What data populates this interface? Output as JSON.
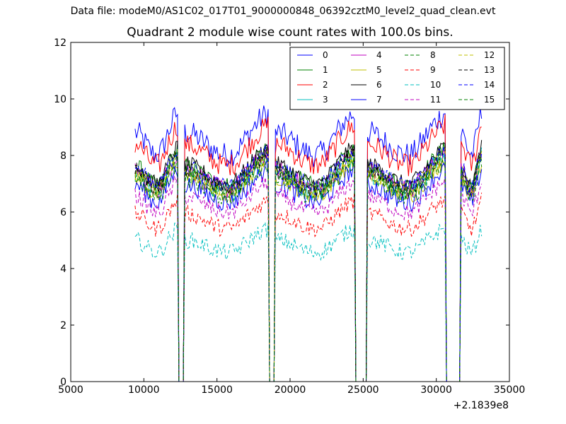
{
  "suptitle": "Data file: modeM0/AS1C02_017T01_9000000848_06392cztM0_level2_quad_clean.evt",
  "chart_data": {
    "type": "line",
    "title": "Quadrant 2 module wise count rates with 100.0s bins.",
    "xlabel": "",
    "ylabel": "",
    "xlim": [
      5000,
      35000
    ],
    "ylim": [
      0,
      12
    ],
    "x_offset_label": "+2.1839e8",
    "x_ticks": [
      5000,
      10000,
      15000,
      20000,
      25000,
      30000,
      35000
    ],
    "x_tick_labels": [
      "5000",
      "10000",
      "15000",
      "20000",
      "25000",
      "30000",
      "35000"
    ],
    "y_ticks": [
      0,
      2,
      4,
      6,
      8,
      10,
      12
    ],
    "y_tick_labels": [
      "0",
      "2",
      "4",
      "6",
      "8",
      "10",
      "12"
    ],
    "x_range": [
      9400,
      33100
    ],
    "x_step": 100,
    "gaps": [
      [
        12300,
        12800
      ],
      [
        18500,
        19000
      ],
      [
        24400,
        25300
      ],
      [
        30600,
        31700
      ]
    ],
    "legend_position": "top-right",
    "legend_columns": 4,
    "series": [
      {
        "name": "0",
        "color": "#0000ff",
        "style": "solid",
        "base": 8.6,
        "noise": 0.45
      },
      {
        "name": "1",
        "color": "#008000",
        "style": "solid",
        "base": 7.4,
        "noise": 0.35
      },
      {
        "name": "2",
        "color": "#ff0000",
        "style": "solid",
        "base": 8.2,
        "noise": 0.4
      },
      {
        "name": "3",
        "color": "#00bfbf",
        "style": "solid",
        "base": 7.2,
        "noise": 0.35
      },
      {
        "name": "4",
        "color": "#bf00bf",
        "style": "solid",
        "base": 7.3,
        "noise": 0.35
      },
      {
        "name": "5",
        "color": "#bfbf00",
        "style": "solid",
        "base": 7.1,
        "noise": 0.35
      },
      {
        "name": "6",
        "color": "#000000",
        "style": "solid",
        "base": 7.5,
        "noise": 0.3
      },
      {
        "name": "7",
        "color": "#0000ff",
        "style": "solid",
        "base": 6.8,
        "noise": 0.35
      },
      {
        "name": "8",
        "color": "#008000",
        "style": "dashed",
        "base": 7.0,
        "noise": 0.3
      },
      {
        "name": "9",
        "color": "#ff0000",
        "style": "dashed",
        "base": 5.8,
        "noise": 0.3
      },
      {
        "name": "10",
        "color": "#00bfbf",
        "style": "dashed",
        "base": 4.9,
        "noise": 0.3
      },
      {
        "name": "11",
        "color": "#bf00bf",
        "style": "dashed",
        "base": 6.4,
        "noise": 0.3
      },
      {
        "name": "12",
        "color": "#bfbf00",
        "style": "dashed",
        "base": 7.2,
        "noise": 0.3
      },
      {
        "name": "13",
        "color": "#000000",
        "style": "dashed",
        "base": 7.3,
        "noise": 0.3
      },
      {
        "name": "14",
        "color": "#0000ff",
        "style": "dashed",
        "base": 7.4,
        "noise": 0.3
      },
      {
        "name": "15",
        "color": "#008000",
        "style": "dashed",
        "base": 7.2,
        "noise": 0.3
      }
    ]
  }
}
